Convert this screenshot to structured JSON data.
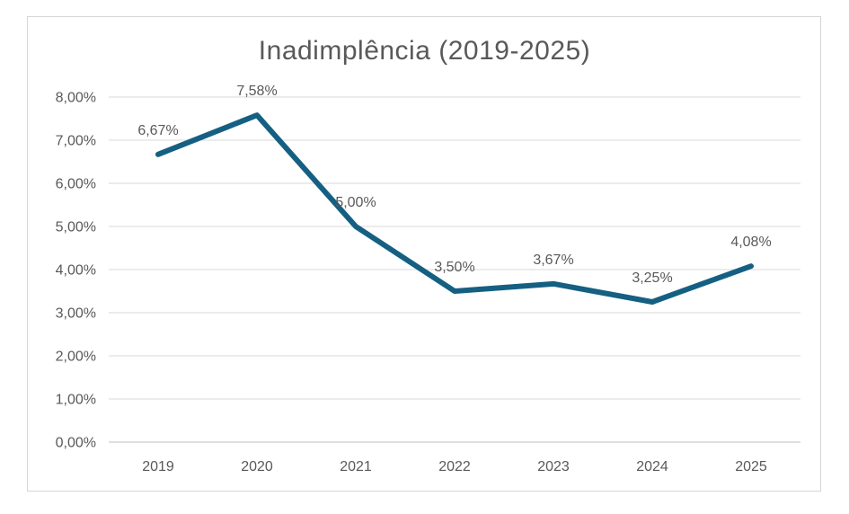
{
  "chart_data": {
    "type": "line",
    "title": "Inadimplência (2019-2025)",
    "categories": [
      "2019",
      "2020",
      "2021",
      "2022",
      "2023",
      "2024",
      "2025"
    ],
    "series": [
      {
        "name": "Inadimplência",
        "values": [
          6.67,
          7.58,
          5.0,
          3.5,
          3.67,
          3.25,
          4.08
        ],
        "point_labels": [
          "6,67%",
          "7,58%",
          "5,00%",
          "3,50%",
          "3,67%",
          "3,25%",
          "4,08%"
        ]
      }
    ],
    "xlabel": "",
    "ylabel": "",
    "ylim": [
      0,
      8
    ],
    "y_ticks": [
      {
        "value": 8,
        "label": "8,00%"
      },
      {
        "value": 7,
        "label": "7,00%"
      },
      {
        "value": 6,
        "label": "6,00%"
      },
      {
        "value": 5,
        "label": "5,00%"
      },
      {
        "value": 4,
        "label": "4,00%"
      },
      {
        "value": 3,
        "label": "3,00%"
      },
      {
        "value": 2,
        "label": "2,00%"
      },
      {
        "value": 1,
        "label": "1,00%"
      },
      {
        "value": 0,
        "label": "0,00%"
      }
    ],
    "grid": true,
    "legend_position": "none",
    "data_label_position": "above",
    "colors": {
      "series_line": "#156082",
      "gridline": "#d9d9d9",
      "axis_line": "#bfbfbf",
      "text": "#595959",
      "border": "#d6d6d6",
      "background": "#ffffff"
    }
  }
}
